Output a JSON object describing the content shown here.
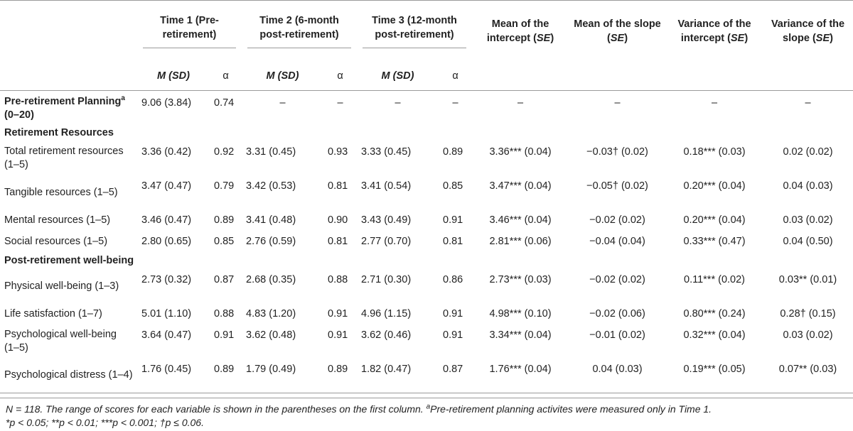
{
  "headers": {
    "group1": "Time 1 (Pre-retirement)",
    "group2": "Time 2 (6-month post-retirement)",
    "group3": "Time 3 (12-month post-retirement)",
    "mean_intercept": "Mean of the intercept",
    "mean_slope": "Mean of the slope",
    "var_intercept": "Variance of the intercept",
    "var_slope": "Variance of the slope",
    "se": "SE",
    "m_sd": "M (SD)",
    "alpha": "α"
  },
  "planning_row": {
    "label_main": "Pre-retirement Planning",
    "label_sup": "a",
    "label_range": " (0–20)",
    "values": [
      "9.06 (3.84)",
      "0.74",
      "–",
      "–",
      "–",
      "–",
      "–",
      "–",
      "–",
      "–"
    ]
  },
  "sections": [
    {
      "title": "Retirement Resources",
      "rows": [
        {
          "label": "Total retirement resources (1–5)",
          "values": [
            "3.36 (0.42)",
            "0.92",
            "3.31 (0.45)",
            "0.93",
            "3.33 (0.45)",
            "0.89",
            "3.36*** (0.04)",
            "−0.03† (0.02)",
            "0.18*** (0.03)",
            "0.02 (0.02)"
          ]
        },
        {
          "label": "Tangible resources (1–5)",
          "values": [
            "3.47 (0.47)",
            "0.79",
            "3.42 (0.53)",
            "0.81",
            "3.41 (0.54)",
            "0.85",
            "3.47*** (0.04)",
            "−0.05† (0.02)",
            "0.20*** (0.04)",
            "0.04 (0.03)"
          ]
        },
        {
          "label": "Mental resources (1–5)",
          "values": [
            "3.46 (0.47)",
            "0.89",
            "3.41 (0.48)",
            "0.90",
            "3.43 (0.49)",
            "0.91",
            "3.46*** (0.04)",
            "−0.02 (0.02)",
            "0.20*** (0.04)",
            "0.03 (0.02)"
          ]
        },
        {
          "label": "Social resources (1–5)",
          "values": [
            "2.80 (0.65)",
            "0.85",
            "2.76 (0.59)",
            "0.81",
            "2.77 (0.70)",
            "0.81",
            "2.81*** (0.06)",
            "−0.04 (0.04)",
            "0.33*** (0.47)",
            "0.04 (0.50)"
          ]
        }
      ]
    },
    {
      "title": "Post-retirement well-being",
      "rows": [
        {
          "label": "Physical well-being (1–3)",
          "values": [
            "2.73 (0.32)",
            "0.87",
            "2.68 (0.35)",
            "0.88",
            "2.71 (0.30)",
            "0.86",
            "2.73*** (0.03)",
            "−0.02 (0.02)",
            "0.11*** (0.02)",
            "0.03** (0.01)"
          ]
        },
        {
          "label": "Life satisfaction (1–7)",
          "values": [
            "5.01 (1.10)",
            "0.88",
            "4.83 (1.20)",
            "0.91",
            "4.96 (1.15)",
            "0.91",
            "4.98*** (0.10)",
            "−0.02 (0.06)",
            "0.80*** (0.24)",
            "0.28† (0.15)"
          ]
        },
        {
          "label": "Psychological well-being (1–5)",
          "values": [
            "3.64 (0.47)",
            "0.91",
            "3.62 (0.48)",
            "0.91",
            "3.62 (0.46)",
            "0.91",
            "3.34*** (0.04)",
            "−0.01 (0.02)",
            "0.32*** (0.04)",
            "0.03 (0.02)"
          ]
        },
        {
          "label": "Psychological distress (1–4)",
          "values": [
            "1.76 (0.45)",
            "0.89",
            "1.79 (0.49)",
            "0.89",
            "1.82 (0.47)",
            "0.87",
            "1.76*** (0.04)",
            "0.04 (0.03)",
            "0.19*** (0.05)",
            "0.07** (0.03)"
          ]
        }
      ]
    }
  ],
  "note": {
    "line1_a": "N = 118. The range of scores for each variable is shown in the parentheses on the first column. ",
    "line1_sup": "a",
    "line1_b": "Pre-retirement planning activites were measured only in Time 1.",
    "line2": "*p < 0.05; **p < 0.01; ***p < 0.001; †p ≤ 0.06."
  }
}
